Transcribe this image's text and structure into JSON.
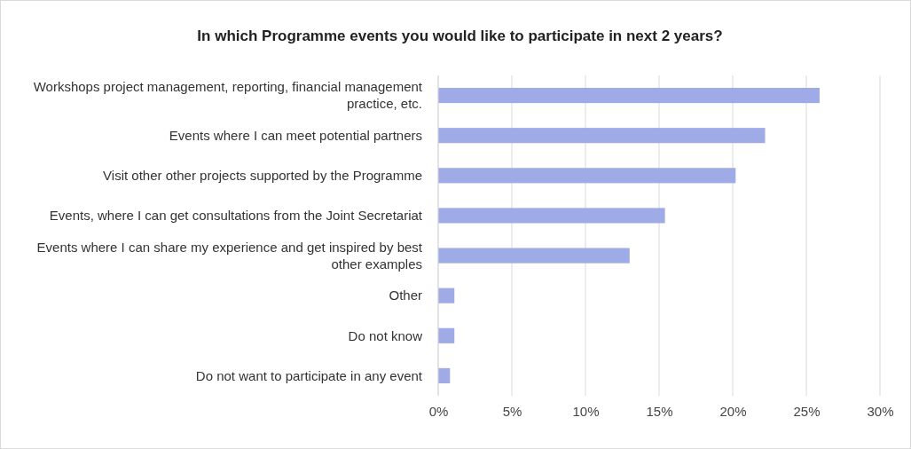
{
  "chart_data": {
    "type": "bar",
    "orientation": "horizontal",
    "title": "In which Programme events you would like to participate in next 2 years?",
    "categories": [
      "Workshops project management, reporting, financial management practice, etc.",
      "Events where I can meet potential partners",
      "Visit other other projects supported by the Programme",
      "Events, where I can get consultations from the Joint Secretariat",
      "Events where I can share my experience and get inspired by best other examples",
      "Other",
      "Do not know",
      "Do not want to participate in any event"
    ],
    "values": [
      25.9,
      22.2,
      20.2,
      15.4,
      13.0,
      1.1,
      1.1,
      0.8
    ],
    "color": "#9fabe6",
    "xlim": [
      0,
      30
    ],
    "xticks": [
      {
        "value": 0,
        "label": "0%"
      },
      {
        "value": 5,
        "label": "5%"
      },
      {
        "value": 10,
        "label": "10%"
      },
      {
        "value": 15,
        "label": "15%"
      },
      {
        "value": 20,
        "label": "20%"
      },
      {
        "value": 25,
        "label": "25%"
      },
      {
        "value": 30,
        "label": "30%"
      }
    ],
    "grid": "x"
  }
}
